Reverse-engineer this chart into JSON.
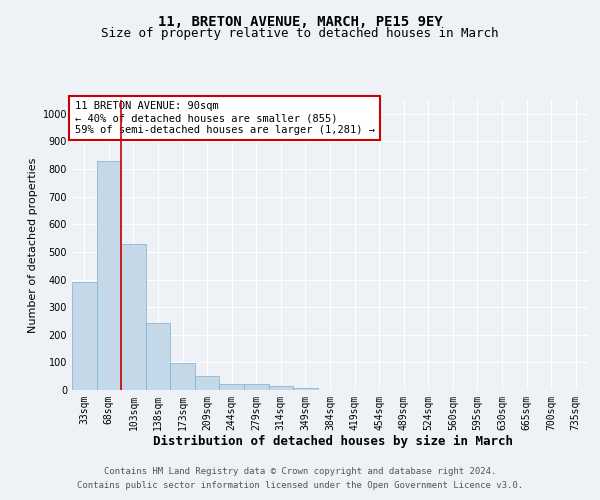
{
  "title1": "11, BRETON AVENUE, MARCH, PE15 9EY",
  "title2": "Size of property relative to detached houses in March",
  "xlabel": "Distribution of detached houses by size in March",
  "ylabel": "Number of detached properties",
  "bar_labels": [
    "33sqm",
    "68sqm",
    "103sqm",
    "138sqm",
    "173sqm",
    "209sqm",
    "244sqm",
    "279sqm",
    "314sqm",
    "349sqm",
    "384sqm",
    "419sqm",
    "454sqm",
    "489sqm",
    "524sqm",
    "560sqm",
    "595sqm",
    "630sqm",
    "665sqm",
    "700sqm",
    "735sqm"
  ],
  "bar_values": [
    390,
    828,
    530,
    243,
    96,
    50,
    22,
    22,
    14,
    8,
    0,
    0,
    0,
    0,
    0,
    0,
    0,
    0,
    0,
    0,
    0
  ],
  "bar_color": "#c5d8e8",
  "bar_edgecolor": "#7bafd4",
  "vline_color": "#cc0000",
  "annotation_text": "11 BRETON AVENUE: 90sqm\n← 40% of detached houses are smaller (855)\n59% of semi-detached houses are larger (1,281) →",
  "annotation_box_edgecolor": "#cc0000",
  "ylim": [
    0,
    1050
  ],
  "yticks": [
    0,
    100,
    200,
    300,
    400,
    500,
    600,
    700,
    800,
    900,
    1000
  ],
  "background_color": "#eef2f7",
  "plot_background": "#eef2f7",
  "grid_color": "#ffffff",
  "footer_line1": "Contains HM Land Registry data © Crown copyright and database right 2024.",
  "footer_line2": "Contains public sector information licensed under the Open Government Licence v3.0.",
  "title1_fontsize": 10,
  "title2_fontsize": 9,
  "xlabel_fontsize": 9,
  "ylabel_fontsize": 8,
  "tick_fontsize": 7,
  "annotation_fontsize": 7.5,
  "footer_fontsize": 6.5
}
